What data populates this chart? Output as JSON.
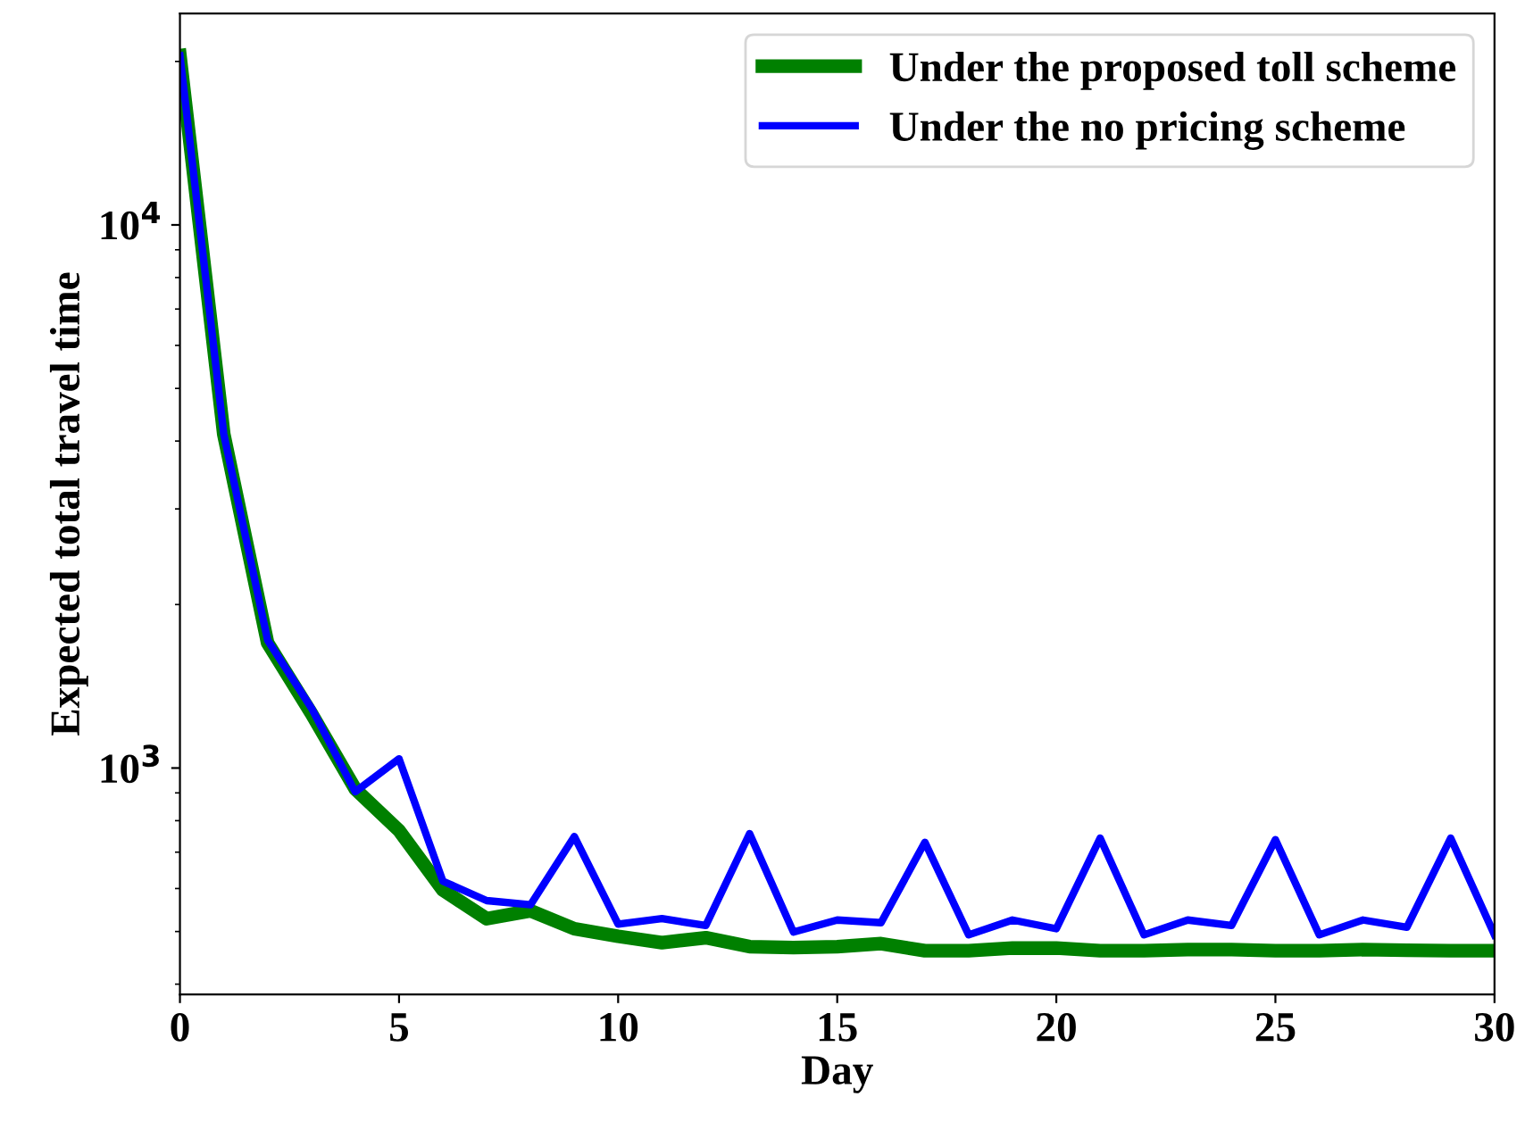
{
  "chart_data": {
    "type": "line",
    "xlabel": "Day",
    "ylabel": "Expected total travel time",
    "x": [
      0,
      1,
      2,
      3,
      4,
      5,
      6,
      7,
      8,
      9,
      10,
      11,
      12,
      13,
      14,
      15,
      16,
      17,
      18,
      19,
      20,
      21,
      22,
      23,
      24,
      25,
      26,
      27,
      28,
      29,
      30
    ],
    "series": [
      {
        "name": "Under the proposed toll scheme",
        "color": "#008000",
        "values": [
          20500,
          4120,
          1700,
          1260,
          915,
          767,
          596,
          528,
          546,
          506,
          490,
          477,
          487,
          469,
          467,
          469,
          475,
          461,
          461,
          466,
          466,
          461,
          461,
          463,
          463,
          461,
          461,
          463,
          462,
          461,
          461
        ]
      },
      {
        "name": "Under the no pricing scheme",
        "color": "#0000ff",
        "values": [
          20500,
          4120,
          1720,
          1290,
          904,
          1040,
          619,
          570,
          560,
          748,
          516,
          528,
          513,
          757,
          499,
          525,
          519,
          730,
          493,
          525,
          506,
          743,
          493,
          525,
          513,
          738,
          493,
          525,
          509,
          743,
          493
        ]
      }
    ],
    "log": "y",
    "xlim": [
      0,
      30
    ],
    "xticks": [
      0,
      5,
      10,
      15,
      20,
      25,
      30
    ],
    "ylim": [
      383,
      24500
    ],
    "yticks": [
      {
        "value": 1000,
        "label": "10$^{3}$"
      },
      {
        "value": 10000,
        "label": "10$^{4}$"
      }
    ],
    "legend": "upper right",
    "grid": false,
    "marker": "none",
    "line_style": "solid"
  }
}
